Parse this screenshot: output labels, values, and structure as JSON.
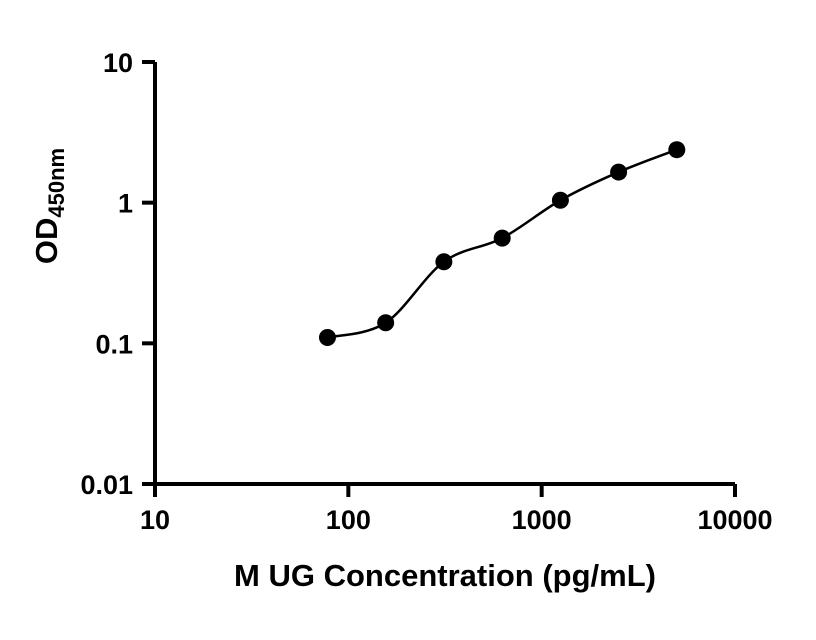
{
  "chart_data": {
    "type": "scatter",
    "x": [
      78,
      156,
      312,
      625,
      1250,
      2500,
      5000
    ],
    "y": [
      0.11,
      0.14,
      0.38,
      0.56,
      1.04,
      1.65,
      2.38
    ],
    "title": "",
    "xlabel": "M UG Concentration (pg/mL)",
    "ylabel_main": "OD",
    "ylabel_sub": "450nm",
    "x_scale": "log",
    "y_scale": "log",
    "xlim": [
      10,
      10000
    ],
    "ylim": [
      0.01,
      10
    ],
    "x_ticks": [
      10,
      100,
      1000,
      10000
    ],
    "x_tick_labels": [
      "10",
      "100",
      "1000",
      "10000"
    ],
    "y_ticks": [
      0.01,
      0.1,
      1,
      10
    ],
    "y_tick_labels": [
      "0.01",
      "0.1",
      "1",
      "10"
    ],
    "grid": "off",
    "legend": "none",
    "curve_fit": "4PL smooth curve through points",
    "marker_color": "#000000",
    "line_color": "#000000",
    "axis_color": "#000000",
    "background_color": "#ffffff"
  }
}
